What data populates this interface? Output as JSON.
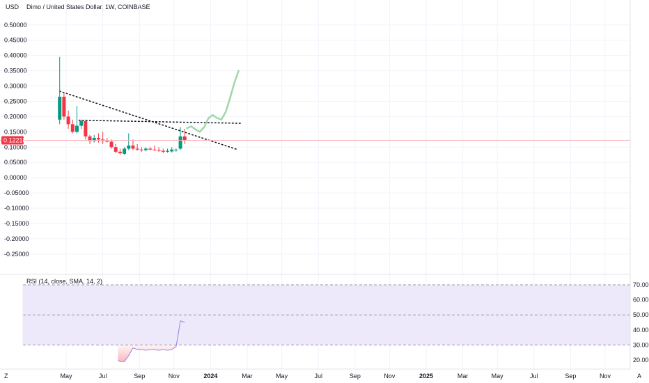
{
  "header": {
    "currency": "USD",
    "symbol_title": "Dimo / United States Dollar, 1W, COINBASE"
  },
  "rsi_panel": {
    "label": "RSI (14, close, SMA, 14, 2)"
  },
  "footer": {
    "left_icon_label": "Z",
    "right_icon_label": "A"
  },
  "price_tag": {
    "value": "0.12218",
    "color": "#f23645"
  },
  "colors": {
    "up": "#089981",
    "down": "#f23645",
    "projection": "#9fd8a8",
    "rsi_band": "#ede9fb",
    "rsi_line": "#9c7fe0",
    "grid": "#f0f3fa"
  },
  "chart_data": [
    {
      "type": "candlestick",
      "title": "Dimo / United States Dollar, 1W, COINBASE",
      "ylabel": "USD",
      "ylim": [
        -0.28,
        0.52
      ],
      "y_ticks": [
        "0.50000",
        "0.45000",
        "0.40000",
        "0.35000",
        "0.30000",
        "0.25000",
        "0.20000",
        "0.15000",
        "0.10000",
        "0.05000",
        "0.00000",
        "-0.05000",
        "-0.10000",
        "-0.15000",
        "-0.20000",
        "-0.25000"
      ],
      "x_ticks": [
        "May",
        "Jul",
        "Sep",
        "Nov",
        "2024",
        "Mar",
        "May",
        "Jul",
        "Sep",
        "Nov",
        "2025",
        "Mar",
        "May",
        "Jul",
        "Sep",
        "Nov"
      ],
      "x_tick_times": [
        2023.33,
        2023.5,
        2023.67,
        2023.83,
        2024.0,
        2024.17,
        2024.33,
        2024.5,
        2024.67,
        2024.83,
        2025.0,
        2025.17,
        2025.33,
        2025.5,
        2025.67,
        2025.83
      ],
      "candles": [
        {
          "t": 2023.3,
          "o": 0.19,
          "h": 0.395,
          "l": 0.175,
          "c": 0.265
        },
        {
          "t": 2023.32,
          "o": 0.265,
          "h": 0.28,
          "l": 0.19,
          "c": 0.2
        },
        {
          "t": 2023.34,
          "o": 0.2,
          "h": 0.22,
          "l": 0.16,
          "c": 0.175
        },
        {
          "t": 2023.36,
          "o": 0.175,
          "h": 0.19,
          "l": 0.145,
          "c": 0.15
        },
        {
          "t": 2023.38,
          "o": 0.15,
          "h": 0.235,
          "l": 0.145,
          "c": 0.17
        },
        {
          "t": 2023.4,
          "o": 0.17,
          "h": 0.19,
          "l": 0.16,
          "c": 0.185
        },
        {
          "t": 2023.42,
          "o": 0.185,
          "h": 0.19,
          "l": 0.125,
          "c": 0.135
        },
        {
          "t": 2023.44,
          "o": 0.135,
          "h": 0.14,
          "l": 0.11,
          "c": 0.12
        },
        {
          "t": 2023.46,
          "o": 0.12,
          "h": 0.14,
          "l": 0.115,
          "c": 0.13
        },
        {
          "t": 2023.48,
          "o": 0.13,
          "h": 0.145,
          "l": 0.115,
          "c": 0.125
        },
        {
          "t": 2023.5,
          "o": 0.125,
          "h": 0.15,
          "l": 0.11,
          "c": 0.12
        },
        {
          "t": 2023.52,
          "o": 0.12,
          "h": 0.13,
          "l": 0.115,
          "c": 0.118
        },
        {
          "t": 2023.54,
          "o": 0.118,
          "h": 0.125,
          "l": 0.095,
          "c": 0.1
        },
        {
          "t": 2023.56,
          "o": 0.1,
          "h": 0.11,
          "l": 0.08,
          "c": 0.085
        },
        {
          "t": 2023.58,
          "o": 0.085,
          "h": 0.095,
          "l": 0.075,
          "c": 0.08
        },
        {
          "t": 2023.6,
          "o": 0.078,
          "h": 0.1,
          "l": 0.075,
          "c": 0.095
        },
        {
          "t": 2023.62,
          "o": 0.095,
          "h": 0.145,
          "l": 0.09,
          "c": 0.105
        },
        {
          "t": 2023.64,
          "o": 0.105,
          "h": 0.125,
          "l": 0.09,
          "c": 0.095
        },
        {
          "t": 2023.66,
          "o": 0.095,
          "h": 0.11,
          "l": 0.088,
          "c": 0.092
        },
        {
          "t": 2023.68,
          "o": 0.092,
          "h": 0.1,
          "l": 0.085,
          "c": 0.09
        },
        {
          "t": 2023.7,
          "o": 0.09,
          "h": 0.1,
          "l": 0.086,
          "c": 0.095
        },
        {
          "t": 2023.72,
          "o": 0.095,
          "h": 0.1,
          "l": 0.09,
          "c": 0.092
        },
        {
          "t": 2023.74,
          "o": 0.092,
          "h": 0.105,
          "l": 0.088,
          "c": 0.09
        },
        {
          "t": 2023.76,
          "o": 0.09,
          "h": 0.1,
          "l": 0.085,
          "c": 0.088
        },
        {
          "t": 2023.78,
          "o": 0.088,
          "h": 0.095,
          "l": 0.08,
          "c": 0.085
        },
        {
          "t": 2023.8,
          "o": 0.085,
          "h": 0.095,
          "l": 0.082,
          "c": 0.088
        },
        {
          "t": 2023.82,
          "o": 0.086,
          "h": 0.1,
          "l": 0.082,
          "c": 0.092
        },
        {
          "t": 2023.84,
          "o": 0.09,
          "h": 0.095,
          "l": 0.085,
          "c": 0.092
        },
        {
          "t": 2023.86,
          "o": 0.095,
          "h": 0.165,
          "l": 0.09,
          "c": 0.135
        },
        {
          "t": 2023.88,
          "o": 0.135,
          "h": 0.16,
          "l": 0.11,
          "c": 0.122
        }
      ],
      "trendlines": [
        {
          "name": "descending",
          "t1": 2023.3,
          "y1": 0.283,
          "t2": 2024.12,
          "y2": 0.093
        },
        {
          "name": "horizontal",
          "t1": 2023.39,
          "y1": 0.188,
          "t2": 2024.14,
          "y2": 0.178
        }
      ],
      "projection": [
        {
          "t": 2023.89,
          "y": 0.162
        },
        {
          "t": 2023.91,
          "y": 0.168
        },
        {
          "t": 2023.93,
          "y": 0.158
        },
        {
          "t": 2023.95,
          "y": 0.15
        },
        {
          "t": 2023.97,
          "y": 0.165
        },
        {
          "t": 2023.99,
          "y": 0.195
        },
        {
          "t": 2024.01,
          "y": 0.205
        },
        {
          "t": 2024.03,
          "y": 0.195
        },
        {
          "t": 2024.05,
          "y": 0.19
        },
        {
          "t": 2024.07,
          "y": 0.215
        },
        {
          "t": 2024.09,
          "y": 0.26
        },
        {
          "t": 2024.11,
          "y": 0.31
        },
        {
          "t": 2024.13,
          "y": 0.35
        }
      ],
      "last_price": 0.12218
    },
    {
      "type": "line",
      "title": "RSI (14, close, SMA, 14, 2)",
      "ylim": [
        16,
        72
      ],
      "y_ticks": [
        "70.00",
        "60.00",
        "50.00",
        "40.00",
        "30.00",
        "20.00"
      ],
      "bands": {
        "upper": 70,
        "middle": 50,
        "lower": 30
      },
      "series": [
        {
          "x": [
            2023.57,
            2023.58,
            2023.6,
            2023.62,
            2023.64,
            2023.66,
            2023.68,
            2023.7,
            2023.72,
            2023.74,
            2023.76,
            2023.78,
            2023.8,
            2023.82,
            2023.84,
            2023.86,
            2023.88
          ],
          "values": [
            20,
            19,
            19,
            23,
            28,
            27,
            27,
            26.5,
            27,
            27,
            26.5,
            27,
            26.5,
            27,
            29,
            46,
            45
          ]
        }
      ]
    }
  ]
}
